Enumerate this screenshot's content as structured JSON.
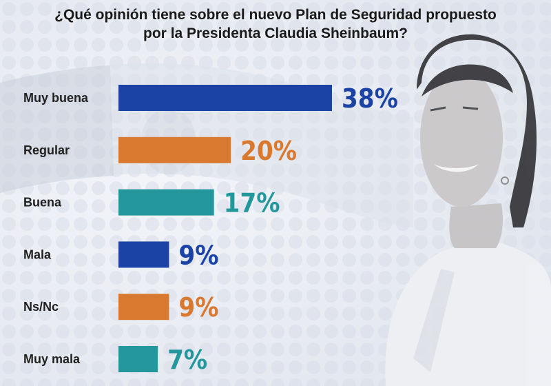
{
  "title_lines": [
    "¿Qué opinión tiene sobre el nuevo Plan de Seguridad propuesto",
    "por la Presidenta Claudia Sheinbaum?"
  ],
  "chart_data": {
    "type": "bar",
    "orientation": "horizontal",
    "title": "¿Qué opinión tiene sobre el nuevo Plan de Seguridad propuesto por la Presidenta Claudia Sheinbaum?",
    "categories": [
      "Muy buena",
      "Regular",
      "Buena",
      "Mala",
      "Ns/Nc",
      "Muy mala"
    ],
    "values": [
      38,
      20,
      17,
      9,
      9,
      7
    ],
    "value_labels": [
      "38%",
      "20%",
      "17%",
      "9%",
      "9%",
      "7%"
    ],
    "unit": "%",
    "xlim": [
      0,
      38
    ],
    "grid": false,
    "legend": "none"
  },
  "colors": {
    "blue": "#1b43a6",
    "orange": "#d9782f",
    "teal": "#23979b",
    "bar_sequence": [
      "#1b43a6",
      "#d9782f",
      "#23979b",
      "#1b43a6",
      "#d9782f",
      "#23979b"
    ]
  }
}
